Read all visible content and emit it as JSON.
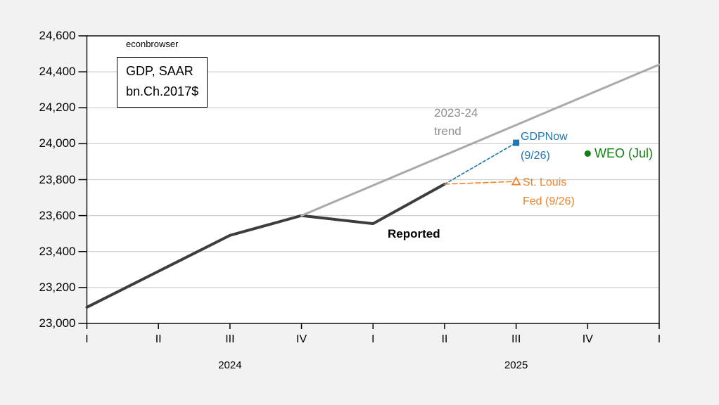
{
  "watermark": "econbrowser",
  "unit_box": {
    "line1": "GDP, SAAR",
    "line2": "bn.Ch.2017$"
  },
  "annotations": {
    "trend_line1": "2023-24",
    "trend_line2": "trend",
    "gdpnow_line1": "GDPNow",
    "gdpnow_line2": "(9/26)",
    "stlouis_line1": "St. Louis",
    "stlouis_line2": "Fed (9/26)",
    "weo_label": "WEO (Jul)",
    "reported_label": "Reported"
  },
  "colors": {
    "reported": "#3d3d3d",
    "trend": "#a9a9a9",
    "gdpnow": "#1f77b4",
    "stlouis": "#f08329",
    "weo": "#118011",
    "grid": "#cfcfcf",
    "frame": "#000000",
    "background": "#f2f2f2",
    "plot_bg": "#ffffff"
  },
  "chart_data": {
    "type": "line",
    "title": "GDP, SAAR bn.Ch.2017$",
    "xlabel": "",
    "ylabel": "GDP, SAAR bn.Ch.2017$",
    "grid": "horizontal",
    "legend_position": "none",
    "ylim": [
      23000,
      24600
    ],
    "y_ticks": [
      23000,
      23200,
      23400,
      23600,
      23800,
      24000,
      24200,
      24400,
      24600
    ],
    "y_tick_labels": [
      "23,000",
      "23,200",
      "23,400",
      "23,600",
      "23,800",
      "24,000",
      "24,200",
      "24,400",
      "24,600"
    ],
    "x_tick_labels": [
      "I",
      "II",
      "III",
      "IV",
      "I",
      "II",
      "III",
      "IV",
      "I"
    ],
    "x_quarters": [
      "2024Q1",
      "2024Q2",
      "2024Q3",
      "2024Q4",
      "2025Q1",
      "2025Q2",
      "2025Q3",
      "2025Q4",
      "2026Q1"
    ],
    "year_labels": [
      {
        "text": "2024",
        "tick_index": 2
      },
      {
        "text": "2025",
        "tick_index": 6
      }
    ],
    "series": [
      {
        "name": "Reported",
        "style": "line",
        "color_key": "reported",
        "width": 4,
        "x": [
          0,
          1,
          2,
          3,
          4,
          5
        ],
        "values": [
          23090,
          23290,
          23490,
          23600,
          23555,
          23775
        ]
      },
      {
        "name": "2023-24 trend",
        "style": "line",
        "color_key": "trend",
        "width": 3,
        "x": [
          3,
          8
        ],
        "values": [
          23600,
          24440
        ]
      },
      {
        "name": "GDPNow (9/26)",
        "style": "dashed",
        "marker": "square",
        "color_key": "gdpnow",
        "width": 1.6,
        "dash": "4 3",
        "x": [
          5,
          6
        ],
        "values": [
          23775,
          24005
        ]
      },
      {
        "name": "St. Louis Fed (9/26)",
        "style": "dashed",
        "marker": "triangle-open",
        "color_key": "stlouis",
        "width": 1.6,
        "dash": "7 4",
        "x": [
          5,
          6
        ],
        "values": [
          23775,
          23790
        ]
      },
      {
        "name": "WEO (Jul)",
        "style": "point",
        "marker": "circle",
        "color_key": "weo",
        "x": [
          7
        ],
        "values": [
          23945
        ]
      }
    ]
  }
}
